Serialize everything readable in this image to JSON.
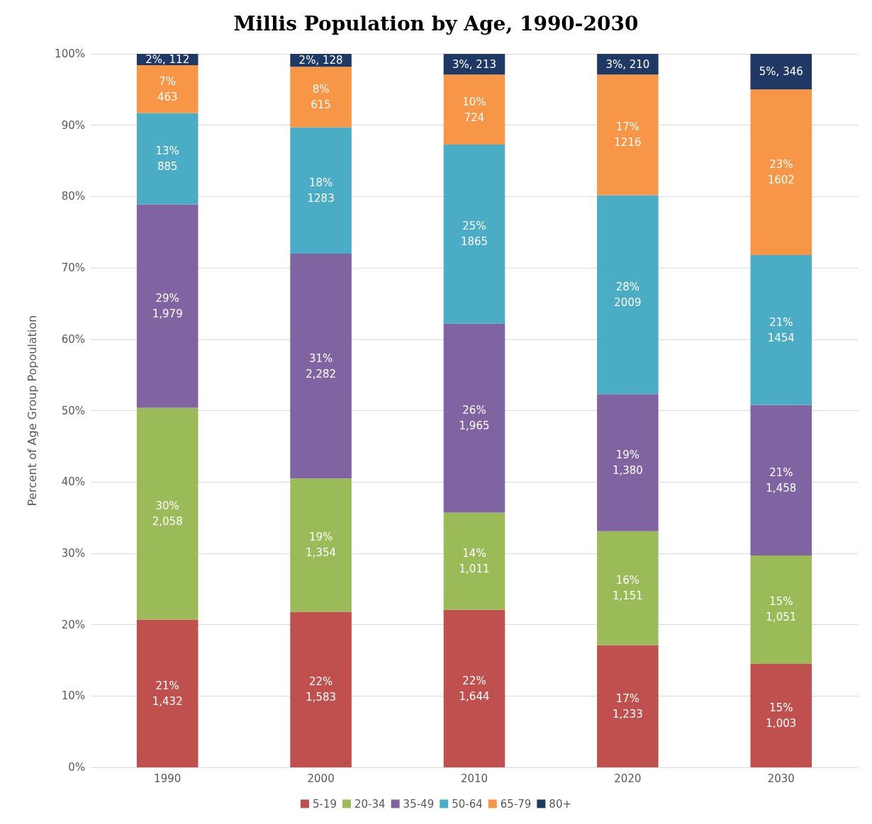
{
  "chart_data": {
    "type": "bar",
    "title": "Millis Population by Age, 1990-2030",
    "ylabel": "Percent of Age Group Popoulation",
    "categories": [
      "1990",
      "2000",
      "2010",
      "2020",
      "2030"
    ],
    "stacked": true,
    "series": [
      {
        "name": "5-19",
        "color": "#c0504d",
        "values": [
          20.7,
          21.8,
          22.1,
          17.1,
          14.5
        ],
        "value_labels": [
          "21%\n1,432",
          "22%\n1,583",
          "22%\n1,644",
          "17%\n1,233",
          "15%\n1,003"
        ]
      },
      {
        "name": "20-34",
        "color": "#9bbb59",
        "values": [
          29.7,
          18.7,
          13.6,
          16.0,
          15.2
        ],
        "value_labels": [
          "30%\n2,058",
          "19%\n1,354",
          "14%\n1,011",
          "16%\n1,151",
          "15%\n1,051"
        ]
      },
      {
        "name": "35-49",
        "color": "#8064a2",
        "values": [
          28.5,
          31.5,
          26.5,
          19.2,
          21.1
        ],
        "value_labels": [
          "29%\n1,979",
          "31%\n2,282",
          "26%\n1,965",
          "19%\n1,380",
          "21%\n1,458"
        ]
      },
      {
        "name": "50-64",
        "color": "#4bacc6",
        "values": [
          12.8,
          17.7,
          25.1,
          27.9,
          21.0
        ],
        "value_labels": [
          "13%\n885",
          "18%\n1283",
          "25%\n1865",
          "28%\n2009",
          "21%\n1454"
        ]
      },
      {
        "name": "65-79",
        "color": "#f79646",
        "values": [
          6.7,
          8.5,
          9.8,
          16.9,
          23.2
        ],
        "value_labels": [
          "7%\n463",
          "8%\n615",
          "10%\n724",
          "17%\n1216",
          "23%\n1602"
        ]
      },
      {
        "name": "80+",
        "color": "#1f3864",
        "values": [
          1.6,
          1.8,
          2.9,
          2.9,
          5.0
        ],
        "value_labels": [
          "2%, 112",
          "2%, 128",
          "3%, 213",
          "3%, 210",
          "5%, 346"
        ]
      }
    ],
    "ylim": [
      0,
      100
    ],
    "yticks": [
      {
        "value": 0,
        "label": "0%"
      },
      {
        "value": 10,
        "label": "10%"
      },
      {
        "value": 20,
        "label": "20%"
      },
      {
        "value": 30,
        "label": "30%"
      },
      {
        "value": 40,
        "label": "40%"
      },
      {
        "value": 50,
        "label": "50%"
      },
      {
        "value": 60,
        "label": "60%"
      },
      {
        "value": 70,
        "label": "70%"
      },
      {
        "value": 80,
        "label": "80%"
      },
      {
        "value": 90,
        "label": "90%"
      },
      {
        "value": 100,
        "label": "100%"
      }
    ],
    "grid": "y",
    "legend": "bottom"
  }
}
